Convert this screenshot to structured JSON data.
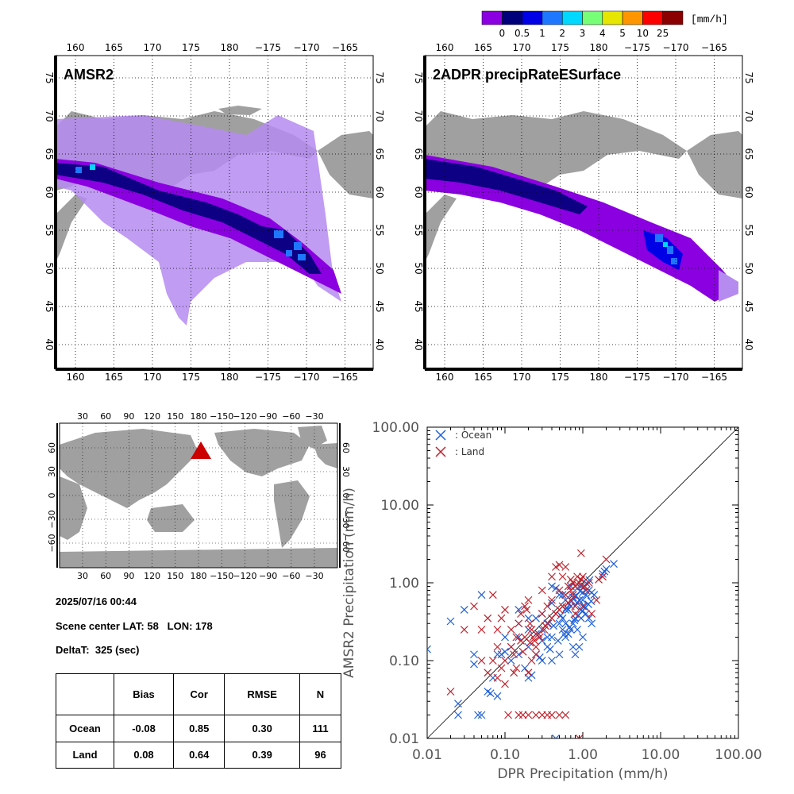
{
  "colorbar": {
    "unit": "[mm/h]",
    "colors": [
      "#8a00e0",
      "#00007a",
      "#0000e6",
      "#1e78ff",
      "#00d8ff",
      "#78ff78",
      "#e6e600",
      "#ff9600",
      "#ff0000",
      "#8b0000"
    ],
    "labels": [
      "0",
      "0.5",
      "1",
      "2",
      "3",
      "4",
      "5",
      "10",
      "25"
    ]
  },
  "maps": {
    "lon_ticks": [
      "160",
      "165",
      "170",
      "175",
      "180",
      "−175",
      "−170",
      "−165"
    ],
    "lat_ticks": [
      "75",
      "70",
      "65",
      "60",
      "55",
      "50",
      "45",
      "40"
    ],
    "amsr2_title": "AMSR2",
    "dpr_title": "2ADPR precipRateESurface"
  },
  "world_map": {
    "lon_ticks": [
      "30",
      "60",
      "90",
      "120",
      "150",
      "180",
      "−150",
      "−120",
      "−90",
      "−60",
      "−30"
    ],
    "lat_ticks_left": [
      "60",
      "30",
      "0",
      "−30",
      "−60"
    ],
    "lat_ticks_right": [
      "60",
      "30",
      "0",
      "−30",
      "−60"
    ],
    "marker_color": "#cc0000"
  },
  "info": {
    "datetime": "2025/07/16 00:44",
    "scene_center": "Scene center LAT: 58   LON: 178",
    "deltat": "DeltaT:  325 (sec)"
  },
  "stats": {
    "headers": [
      "",
      "Bias",
      "Cor",
      "RMSE",
      "N"
    ],
    "rows": [
      {
        "label": "Ocean",
        "bias": "-0.08",
        "cor": "0.85",
        "rmse": "0.30",
        "n": "111"
      },
      {
        "label": "Land",
        "bias": "0.08",
        "cor": "0.64",
        "rmse": "0.39",
        "n": "96"
      }
    ]
  },
  "chart_data": {
    "type": "scatter",
    "xlabel": "DPR Precipitation (mm/h)",
    "ylabel": "AMSR2 Precipitation (mm/h)",
    "x_scale": "log",
    "y_scale": "log",
    "xlim": [
      0.01,
      100
    ],
    "ylim": [
      0.01,
      100
    ],
    "x_tick_labels": [
      "0.01",
      "0.10",
      "1.00",
      "10.00",
      "100.00"
    ],
    "y_tick_labels": [
      "0.01",
      "0.10",
      "1.00",
      "10.00",
      "100.00"
    ],
    "diagonal": true,
    "legend_position": "top-left",
    "series": [
      {
        "name": ": Ocean",
        "color": "#1f5fd6",
        "points": [
          [
            0.01,
            0.14
          ],
          [
            0.02,
            0.32
          ],
          [
            0.025,
            0.028
          ],
          [
            0.025,
            0.02
          ],
          [
            0.03,
            0.45
          ],
          [
            0.04,
            0.12
          ],
          [
            0.04,
            0.09
          ],
          [
            0.045,
            0.02
          ],
          [
            0.05,
            0.7
          ],
          [
            0.05,
            0.02
          ],
          [
            0.06,
            0.04
          ],
          [
            0.065,
            0.038
          ],
          [
            0.07,
            0.06
          ],
          [
            0.08,
            0.035
          ],
          [
            0.09,
            0.12
          ],
          [
            0.1,
            0.2
          ],
          [
            0.12,
            0.15
          ],
          [
            0.15,
            0.12
          ],
          [
            0.2,
            0.06
          ],
          [
            0.22,
            0.065
          ],
          [
            0.25,
            0.12
          ],
          [
            0.3,
            0.25
          ],
          [
            0.35,
            0.15
          ],
          [
            0.4,
            0.9
          ],
          [
            0.45,
            0.85
          ],
          [
            0.5,
            0.3
          ],
          [
            0.55,
            0.7
          ],
          [
            0.6,
            0.2
          ],
          [
            0.65,
            0.22
          ],
          [
            0.7,
            0.25
          ],
          [
            0.75,
            0.3
          ],
          [
            0.8,
            0.12
          ],
          [
            0.85,
            0.55
          ],
          [
            0.9,
            0.6
          ],
          [
            0.95,
            0.9
          ],
          [
            1.0,
            0.75
          ],
          [
            1.05,
            0.5
          ],
          [
            1.1,
            0.7
          ],
          [
            1.2,
            0.8
          ],
          [
            1.3,
            0.75
          ],
          [
            1.4,
            0.7
          ],
          [
            1.2,
            0.35
          ],
          [
            1.0,
            0.2
          ],
          [
            0.9,
            0.15
          ],
          [
            1.8,
            1.3
          ],
          [
            1.9,
            1.4
          ],
          [
            2.0,
            1.5
          ],
          [
            2.5,
            1.75
          ],
          [
            0.4,
            0.1
          ],
          [
            0.5,
            0.12
          ],
          [
            0.3,
            0.1
          ],
          [
            0.2,
            0.25
          ],
          [
            0.15,
            0.2
          ],
          [
            0.6,
            0.45
          ],
          [
            0.7,
            0.5
          ],
          [
            0.25,
            0.35
          ],
          [
            0.35,
            0.3
          ],
          [
            0.45,
            0.4
          ],
          [
            0.55,
            0.25
          ],
          [
            0.65,
            0.55
          ],
          [
            0.75,
            0.65
          ],
          [
            0.85,
            0.85
          ],
          [
            0.95,
            0.45
          ],
          [
            1.1,
            0.4
          ],
          [
            1.3,
            0.3
          ],
          [
            0.2,
            0.15
          ],
          [
            0.3,
            0.18
          ],
          [
            0.4,
            0.2
          ],
          [
            0.6,
            0.3
          ],
          [
            0.8,
            0.35
          ],
          [
            1.0,
            0.6
          ],
          [
            0.7,
            0.9
          ],
          [
            0.5,
            0.7
          ],
          [
            0.6,
            0.6
          ],
          [
            0.4,
            0.55
          ],
          [
            0.3,
            0.4
          ],
          [
            0.2,
            0.35
          ],
          [
            0.15,
            0.45
          ],
          [
            0.1,
            0.13
          ],
          [
            0.08,
            0.12
          ],
          [
            0.12,
            0.1
          ],
          [
            0.18,
            0.08
          ],
          [
            0.28,
            0.11
          ],
          [
            0.38,
            0.14
          ],
          [
            0.48,
            0.18
          ],
          [
            0.58,
            0.22
          ],
          [
            0.68,
            0.27
          ],
          [
            0.78,
            0.33
          ],
          [
            0.88,
            0.38
          ],
          [
            0.98,
            0.43
          ],
          [
            1.08,
            0.48
          ],
          [
            1.18,
            0.53
          ],
          [
            1.28,
            0.58
          ],
          [
            0.42,
            0.28
          ],
          [
            0.52,
            0.38
          ],
          [
            0.62,
            0.48
          ],
          [
            0.72,
            0.58
          ],
          [
            0.82,
            0.68
          ],
          [
            0.92,
            0.78
          ],
          [
            1.02,
            0.88
          ],
          [
            1.12,
            0.98
          ],
          [
            1.22,
            1.08
          ],
          [
            0.45,
            0.01
          ],
          [
            0.35,
            0.2
          ],
          [
            0.25,
            0.22
          ],
          [
            0.15,
            0.3
          ],
          [
            0.55,
            0.35
          ],
          [
            0.65,
            0.45
          ],
          [
            0.75,
            0.15
          ],
          [
            0.85,
            0.25
          ],
          [
            0.95,
            0.35
          ]
        ]
      },
      {
        "name": ": Land",
        "color": "#c0202a",
        "points": [
          [
            0.02,
            0.04
          ],
          [
            0.03,
            0.25
          ],
          [
            0.04,
            0.5
          ],
          [
            0.05,
            0.25
          ],
          [
            0.06,
            0.35
          ],
          [
            0.07,
            0.7
          ],
          [
            0.08,
            0.25
          ],
          [
            0.09,
            0.35
          ],
          [
            0.1,
            0.45
          ],
          [
            0.1,
            0.1
          ],
          [
            0.1,
            0.05
          ],
          [
            0.11,
            0.02
          ],
          [
            0.12,
            0.15
          ],
          [
            0.13,
            0.12
          ],
          [
            0.14,
            0.08
          ],
          [
            0.15,
            0.3
          ],
          [
            0.16,
            0.4
          ],
          [
            0.17,
            0.02
          ],
          [
            0.18,
            0.5
          ],
          [
            0.19,
            0.45
          ],
          [
            0.2,
            0.6
          ],
          [
            0.21,
            0.3
          ],
          [
            0.22,
            0.25
          ],
          [
            0.23,
            0.2
          ],
          [
            0.24,
            0.18
          ],
          [
            0.25,
            0.15
          ],
          [
            0.3,
            0.8
          ],
          [
            0.3,
            0.4
          ],
          [
            0.35,
            0.5
          ],
          [
            0.35,
            0.02
          ],
          [
            0.4,
            0.6
          ],
          [
            0.4,
            1.2
          ],
          [
            0.45,
            1.6
          ],
          [
            0.5,
            1.7
          ],
          [
            0.5,
            0.8
          ],
          [
            0.55,
            1.2
          ],
          [
            0.6,
            1.6
          ],
          [
            0.6,
            0.02
          ],
          [
            0.65,
            0.9
          ],
          [
            0.7,
            1.1
          ],
          [
            0.7,
            0.6
          ],
          [
            0.75,
            1.0
          ],
          [
            0.8,
            0.5
          ],
          [
            0.8,
            0.4
          ],
          [
            0.85,
            1.2
          ],
          [
            0.9,
            0.01
          ],
          [
            0.95,
            2.4
          ],
          [
            1.0,
            1.2
          ],
          [
            1.1,
            0.8
          ],
          [
            1.2,
            1.0
          ],
          [
            1.3,
            0.4
          ],
          [
            1.5,
            0.6
          ],
          [
            1.6,
            1.1
          ],
          [
            1.8,
            1.2
          ],
          [
            2.0,
            2.0
          ],
          [
            0.06,
            0.07
          ],
          [
            0.07,
            0.1
          ],
          [
            0.08,
            0.06
          ],
          [
            0.09,
            0.08
          ],
          [
            0.05,
            0.1
          ],
          [
            0.12,
            0.25
          ],
          [
            0.14,
            0.2
          ],
          [
            0.16,
            0.18
          ],
          [
            0.18,
            0.2
          ],
          [
            0.2,
            0.07
          ],
          [
            0.22,
            0.1
          ],
          [
            0.25,
            0.12
          ],
          [
            0.28,
            0.2
          ],
          [
            0.32,
            0.25
          ],
          [
            0.36,
            0.3
          ],
          [
            0.4,
            0.35
          ],
          [
            0.45,
            0.4
          ],
          [
            0.5,
            0.45
          ],
          [
            0.55,
            0.5
          ],
          [
            0.6,
            0.7
          ],
          [
            0.65,
            0.55
          ],
          [
            0.7,
            0.8
          ],
          [
            0.75,
            0.7
          ],
          [
            0.8,
            0.9
          ],
          [
            0.85,
            0.95
          ],
          [
            0.9,
            1.0
          ],
          [
            0.95,
            1.1
          ],
          [
            1.0,
            0.5
          ],
          [
            1.05,
            0.9
          ],
          [
            0.15,
            0.02
          ],
          [
            0.2,
            0.02
          ],
          [
            0.25,
            0.02
          ],
          [
            0.3,
            0.02
          ],
          [
            0.4,
            0.02
          ],
          [
            0.5,
            0.02
          ],
          [
            0.08,
            0.15
          ],
          [
            0.13,
            0.07
          ],
          [
            0.17,
            0.13
          ],
          [
            0.21,
            0.17
          ],
          [
            0.27,
            0.22
          ],
          [
            0.33,
            0.28
          ]
        ]
      }
    ]
  }
}
